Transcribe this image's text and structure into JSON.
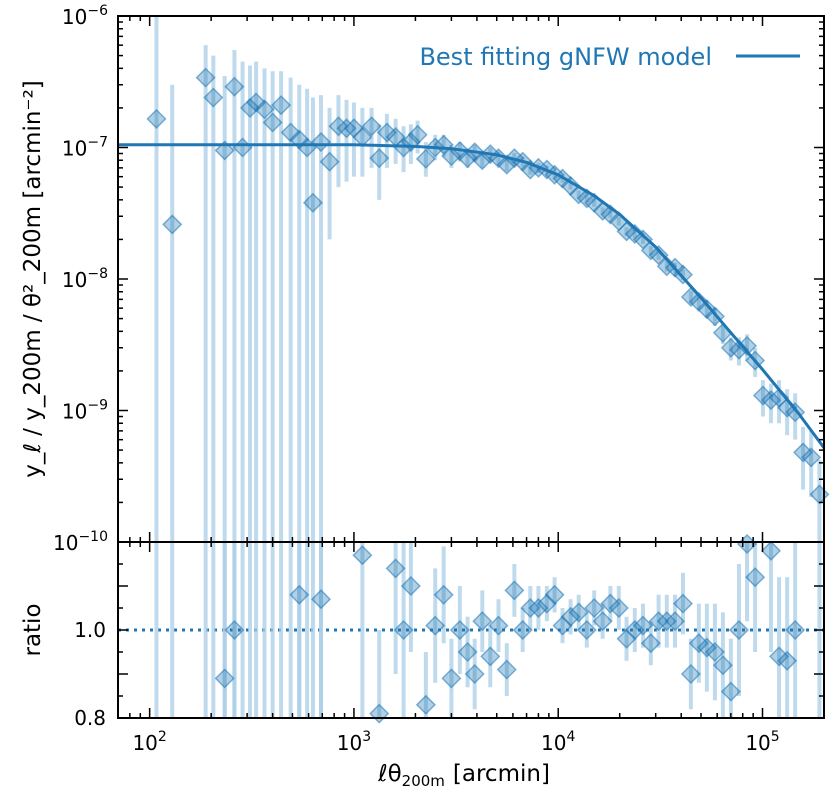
{
  "chart_data": {
    "type": "scatter",
    "title": "",
    "colors": {
      "model": "#1f77b4",
      "points": "#1f77b4",
      "errorbars": "#a9cde6"
    },
    "legend": {
      "label": "Best fitting gNFW model",
      "placement": "top-right"
    },
    "xlabel": {
      "main": "ℓθ",
      "sub": "200m",
      "unit": "[arcmin]"
    },
    "xlim": [
      70,
      200000
    ],
    "x_ticks": [
      {
        "base": "10",
        "exp": "2",
        "value": 100
      },
      {
        "base": "10",
        "exp": "3",
        "value": 1000
      },
      {
        "base": "10",
        "exp": "4",
        "value": 10000
      },
      {
        "base": "10",
        "exp": "5",
        "value": 100000
      }
    ],
    "top_panel": {
      "ylabel": "y_ℓ / y_200m / θ²_200m [arcmin⁻²]",
      "ylim": [
        1e-10,
        1e-06
      ],
      "y_ticks": [
        {
          "base": "10",
          "exp": "−6",
          "value": 1e-06
        },
        {
          "base": "10",
          "exp": "−7",
          "value": 1e-07
        },
        {
          "base": "10",
          "exp": "−8",
          "value": 1e-08
        },
        {
          "base": "10",
          "exp": "−9",
          "value": 1e-09
        },
        {
          "base": "10",
          "exp": "−10",
          "value": 1e-10
        }
      ],
      "model": {
        "name": "Best fitting gNFW model",
        "points": [
          [
            70,
            1.05e-07
          ],
          [
            1000,
            1.05e-07
          ],
          [
            2000,
            1.02e-07
          ],
          [
            3000,
            9.8e-08
          ],
          [
            5000,
            8.8e-08
          ],
          [
            7000,
            7.7e-08
          ],
          [
            10000,
            6.2e-08
          ],
          [
            15000,
            4.3e-08
          ],
          [
            20000,
            3.1e-08
          ],
          [
            30000,
            1.75e-08
          ],
          [
            50000,
            7.2e-09
          ],
          [
            70000,
            3.9e-09
          ],
          [
            100000,
            2.05e-09
          ],
          [
            150000,
            9.5e-10
          ],
          [
            200000,
            5.2e-10
          ]
        ]
      },
      "data": [
        [
          108,
          1.65e-07,
          1e-10,
          1e-06
        ],
        [
          129,
          2.6e-08,
          1e-10,
          3e-07
        ],
        [
          188,
          3.4e-07,
          1e-10,
          6e-07
        ],
        [
          205,
          2.4e-07,
          1e-10,
          5e-07
        ],
        [
          233,
          9.5e-08,
          1e-10,
          3.5e-07
        ],
        [
          260,
          2.9e-07,
          1e-10,
          5.5e-07
        ],
        [
          285,
          1e-07,
          1e-10,
          4.5e-07
        ],
        [
          310,
          2e-07,
          1e-10,
          4.2e-07
        ],
        [
          332,
          2.2e-07,
          1e-10,
          4.5e-07
        ],
        [
          365,
          1.95e-07,
          1e-10,
          4e-07
        ],
        [
          400,
          1.55e-07,
          1e-10,
          3.8e-07
        ],
        [
          440,
          2.1e-07,
          1e-10,
          3.8e-07
        ],
        [
          490,
          1.3e-07,
          1e-10,
          3.4e-07
        ],
        [
          540,
          1.15e-07,
          1e-10,
          3e-07
        ],
        [
          590,
          1e-07,
          1e-10,
          2.8e-07
        ],
        [
          630,
          3.8e-08,
          1e-10,
          2.4e-07
        ],
        [
          690,
          1.1e-07,
          1e-10,
          2.5e-07
        ],
        [
          760,
          7.8e-08,
          2e-08,
          2e-07
        ],
        [
          840,
          1.45e-07,
          5e-08,
          2.5e-07
        ],
        [
          920,
          1.4e-07,
          5.5e-08,
          2.3e-07
        ],
        [
          1000,
          1.4e-07,
          6e-08,
          2.2e-07
        ],
        [
          1100,
          1.2e-07,
          6e-08,
          2e-07
        ],
        [
          1220,
          1.45e-07,
          7e-08,
          2e-07
        ],
        [
          1330,
          8.3e-08,
          4e-08,
          1.5e-07
        ],
        [
          1450,
          1.3e-07,
          7e-08,
          1.8e-07
        ],
        [
          1600,
          1.2e-07,
          7.5e-08,
          1.65e-07
        ],
        [
          1750,
          1e-07,
          6.5e-08,
          1.45e-07
        ],
        [
          1900,
          1.1e-07,
          7.5e-08,
          1.5e-07
        ],
        [
          2050,
          1.25e-07,
          9e-08,
          1.6e-07
        ],
        [
          2250,
          8.2e-08,
          6e-08,
          1.1e-07
        ],
        [
          2500,
          1e-07,
          8e-08,
          1.25e-07
        ],
        [
          2750,
          1.05e-07,
          8.5e-08,
          1.25e-07
        ],
        [
          3000,
          8.6e-08,
          7e-08,
          1.05e-07
        ],
        [
          3300,
          9.4e-08,
          7.8e-08,
          1.1e-07
        ],
        [
          3600,
          8.3e-08,
          7e-08,
          9.8e-08
        ],
        [
          3900,
          9.2e-08,
          7.8e-08,
          1.05e-07
        ],
        [
          4250,
          8e-08,
          7e-08,
          9.2e-08
        ],
        [
          4650,
          8.9e-08,
          7.8e-08,
          1e-07
        ],
        [
          5100,
          8.3e-08,
          7.4e-08,
          9.3e-08
        ],
        [
          5600,
          7.4e-08,
          6.6e-08,
          8.3e-08
        ],
        [
          6100,
          8.3e-08,
          7.5e-08,
          9.1e-08
        ],
        [
          6700,
          7.8e-08,
          7.1e-08,
          8.5e-08
        ],
        [
          7300,
          6.8e-08,
          6.2e-08,
          7.4e-08
        ],
        [
          8000,
          7e-08,
          6.4e-08,
          7.6e-08
        ],
        [
          8800,
          6.8e-08,
          6.3e-08,
          7.3e-08
        ],
        [
          9600,
          6.2e-08,
          5.8e-08,
          6.6e-08
        ],
        [
          10500,
          5.8e-08,
          5.4e-08,
          6.2e-08
        ],
        [
          11500,
          5.1e-08,
          4.8e-08,
          5.4e-08
        ],
        [
          12600,
          4.4e-08,
          4.1e-08,
          4.7e-08
        ],
        [
          13800,
          4.1e-08,
          3.85e-08,
          4.35e-08
        ],
        [
          15000,
          3.8e-08,
          3.55e-08,
          4.05e-08
        ],
        [
          16500,
          3.3e-08,
          3.1e-08,
          3.5e-08
        ],
        [
          18000,
          3.1e-08,
          2.9e-08,
          3.3e-08
        ],
        [
          19800,
          2.75e-08,
          2.55e-08,
          2.95e-08
        ],
        [
          21600,
          2.3e-08,
          2.13e-08,
          2.47e-08
        ],
        [
          23700,
          2.2e-08,
          2.04e-08,
          2.36e-08
        ],
        [
          26000,
          2e-08,
          1.85e-08,
          2.15e-08
        ],
        [
          28400,
          1.65e-08,
          1.52e-08,
          1.78e-08
        ],
        [
          31000,
          1.52e-08,
          1.4e-08,
          1.64e-08
        ],
        [
          34000,
          1.25e-08,
          1.14e-08,
          1.36e-08
        ],
        [
          37300,
          1.22e-08,
          1.11e-08,
          1.33e-08
        ],
        [
          40800,
          1.08e-08,
          9.8e-09,
          1.18e-08
        ],
        [
          44600,
          7.3e-09,
          6.5e-09,
          8.1e-09
        ],
        [
          48800,
          6.7e-09,
          5.9e-09,
          7.5e-09
        ],
        [
          53400,
          5.9e-09,
          5.1e-09,
          6.7e-09
        ],
        [
          58500,
          5.2e-09,
          4.4e-09,
          6e-09
        ],
        [
          64000,
          3.9e-09,
          3.2e-09,
          4.6e-09
        ],
        [
          70000,
          3e-09,
          2.4e-09,
          3.6e-09
        ],
        [
          76700,
          2.9e-09,
          2.2e-09,
          3.6e-09
        ],
        [
          84000,
          3.1e-09,
          2.4e-09,
          3.8e-09
        ],
        [
          92000,
          2.4e-09,
          1.8e-09,
          3e-09
        ],
        [
          100500,
          1.3e-09,
          9e-10,
          1.7e-09
        ],
        [
          110000,
          1.2e-09,
          8e-10,
          1.6e-09
        ],
        [
          120500,
          1.25e-09,
          8e-10,
          1.7e-09
        ],
        [
          132000,
          1.05e-09,
          6.5e-10,
          1.45e-09
        ],
        [
          144500,
          9.7e-10,
          6e-10,
          1.35e-09
        ],
        [
          158000,
          4.8e-10,
          2.5e-10,
          7.5e-10
        ],
        [
          173000,
          4.4e-10,
          2.2e-10,
          7e-10
        ],
        [
          190000,
          2.3e-10,
          1e-10,
          4.2e-10
        ]
      ]
    },
    "bottom_panel": {
      "ylabel": "ratio",
      "ylim": [
        0.8,
        1.2
      ],
      "y_ticks": [
        {
          "label": "0.8",
          "value": 0.8
        },
        {
          "label": "1.0",
          "value": 1.0
        }
      ],
      "reference_line": 1.0,
      "data": [
        [
          233,
          0.89,
          0.8,
          1.2
        ],
        [
          260,
          1.0,
          0.8,
          1.2
        ],
        [
          540,
          1.08,
          0.8,
          1.2
        ],
        [
          690,
          1.07,
          0.8,
          1.2
        ],
        [
          1100,
          1.17,
          0.8,
          1.2
        ],
        [
          1330,
          0.81,
          0.8,
          1.0
        ],
        [
          1600,
          1.14,
          0.9,
          1.2
        ],
        [
          1750,
          1.0,
          0.8,
          1.2
        ],
        [
          1900,
          1.1,
          0.95,
          1.2
        ],
        [
          2250,
          0.83,
          0.8,
          0.95
        ],
        [
          2500,
          1.01,
          0.88,
          1.14
        ],
        [
          2750,
          1.08,
          0.97,
          1.19
        ],
        [
          3000,
          0.89,
          0.8,
          0.98
        ],
        [
          3300,
          1.0,
          0.9,
          1.1
        ],
        [
          3600,
          0.95,
          0.87,
          1.03
        ],
        [
          3900,
          0.9,
          0.82,
          0.98
        ],
        [
          4250,
          1.02,
          0.95,
          1.09
        ],
        [
          4650,
          0.94,
          0.87,
          1.01
        ],
        [
          5100,
          1.01,
          0.95,
          1.07
        ],
        [
          5600,
          0.91,
          0.85,
          0.97
        ],
        [
          6100,
          1.09,
          1.03,
          1.15
        ],
        [
          6700,
          1.0,
          0.95,
          1.05
        ],
        [
          7300,
          1.05,
          1.0,
          1.1
        ],
        [
          8000,
          1.05,
          1.0,
          1.1
        ],
        [
          8800,
          1.06,
          1.02,
          1.1
        ],
        [
          9600,
          1.08,
          1.04,
          1.12
        ],
        [
          10500,
          1.01,
          0.97,
          1.05
        ],
        [
          11500,
          1.03,
          0.99,
          1.07
        ],
        [
          12600,
          1.04,
          1.0,
          1.08
        ],
        [
          13800,
          1.0,
          0.96,
          1.04
        ],
        [
          15000,
          1.05,
          1.01,
          1.09
        ],
        [
          16500,
          1.02,
          0.98,
          1.06
        ],
        [
          18000,
          1.06,
          1.02,
          1.1
        ],
        [
          19800,
          1.05,
          1.0,
          1.1
        ],
        [
          21600,
          0.98,
          0.93,
          1.03
        ],
        [
          23700,
          1.0,
          0.95,
          1.05
        ],
        [
          26000,
          1.01,
          0.96,
          1.06
        ],
        [
          28400,
          0.97,
          0.92,
          1.02
        ],
        [
          31000,
          1.02,
          0.96,
          1.08
        ],
        [
          34000,
          1.02,
          0.96,
          1.08
        ],
        [
          37300,
          1.02,
          0.96,
          1.08
        ],
        [
          40800,
          1.06,
          0.99,
          1.13
        ],
        [
          44600,
          0.9,
          0.82,
          0.98
        ],
        [
          48800,
          0.97,
          0.88,
          1.06
        ],
        [
          53400,
          0.96,
          0.86,
          1.06
        ],
        [
          58500,
          0.95,
          0.84,
          1.06
        ],
        [
          64000,
          0.92,
          0.8,
          1.04
        ],
        [
          70000,
          0.86,
          0.8,
          0.98
        ],
        [
          76700,
          1.0,
          0.85,
          1.15
        ],
        [
          84000,
          1.2,
          1.02,
          1.2
        ],
        [
          92000,
          1.12,
          0.95,
          1.2
        ],
        [
          110000,
          1.18,
          0.95,
          1.2
        ],
        [
          120500,
          0.94,
          0.8,
          1.12
        ],
        [
          132000,
          0.93,
          0.8,
          1.12
        ],
        [
          144500,
          1.0,
          0.8,
          1.2
        ]
      ]
    }
  }
}
